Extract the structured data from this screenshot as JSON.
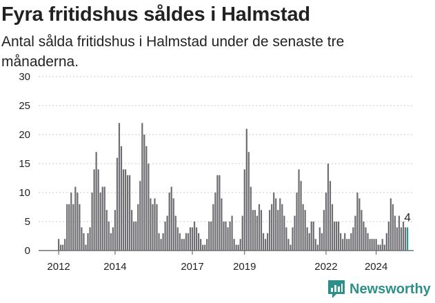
{
  "header": {
    "title": "Fyra fritidshus såldes i Halmstad",
    "subtitle": "Antal sålda fritidshus i Halmstad under de senaste tre månaderna."
  },
  "brand": {
    "name": "Newsworthy",
    "icon": "newsworthy-logo-icon",
    "color": "#2c8f89"
  },
  "colors": {
    "bar": "#6d6c70",
    "highlight": "#1b9e9a",
    "grid": "#c8c8c8"
  },
  "chart_data": {
    "type": "bar",
    "title": "Fyra fritidshus såldes i Halmstad",
    "subtitle": "Antal sålda fritidshus i Halmstad under de senaste tre månaderna.",
    "ylim": [
      0,
      30
    ],
    "yticks": [
      0,
      5,
      10,
      15,
      20,
      25,
      30
    ],
    "xticks": [
      "2012",
      "2014",
      "2017",
      "2019",
      "2022",
      "2024"
    ],
    "grid": true,
    "annotation": "4",
    "values": [
      2,
      1,
      1,
      2,
      8,
      8,
      10,
      8,
      11,
      10,
      8,
      4,
      3,
      1,
      3,
      4,
      10,
      14,
      17,
      14,
      10,
      11,
      11,
      7,
      5,
      3,
      4,
      7,
      16,
      22,
      18,
      14,
      14,
      13,
      13,
      7,
      5,
      5,
      8,
      12,
      22,
      20,
      18,
      15,
      9,
      8,
      9,
      8,
      3,
      2,
      3,
      5,
      6,
      10,
      11,
      9,
      6,
      4,
      3,
      2,
      2,
      3,
      3,
      4,
      4,
      5,
      4,
      3,
      2,
      1,
      1,
      2,
      5,
      5,
      8,
      10,
      13,
      13,
      9,
      5,
      5,
      4,
      5,
      6,
      2,
      1,
      1,
      2,
      6,
      14,
      21,
      17,
      11,
      7,
      7,
      6,
      8,
      7,
      3,
      2,
      3,
      7,
      8,
      10,
      9,
      7,
      9,
      8,
      6,
      4,
      2,
      1,
      4,
      6,
      10,
      14,
      12,
      8,
      7,
      4,
      3,
      5,
      5,
      2,
      1,
      4,
      3,
      7,
      10,
      15,
      12,
      8,
      5,
      5,
      5,
      3,
      2,
      3,
      2,
      2,
      3,
      4,
      6,
      10,
      9,
      7,
      5,
      4,
      3,
      2,
      2,
      2,
      2,
      1,
      1,
      2,
      1,
      3,
      5,
      9,
      8,
      6,
      4,
      6,
      4,
      5,
      4,
      4
    ],
    "highlight_last": true
  }
}
